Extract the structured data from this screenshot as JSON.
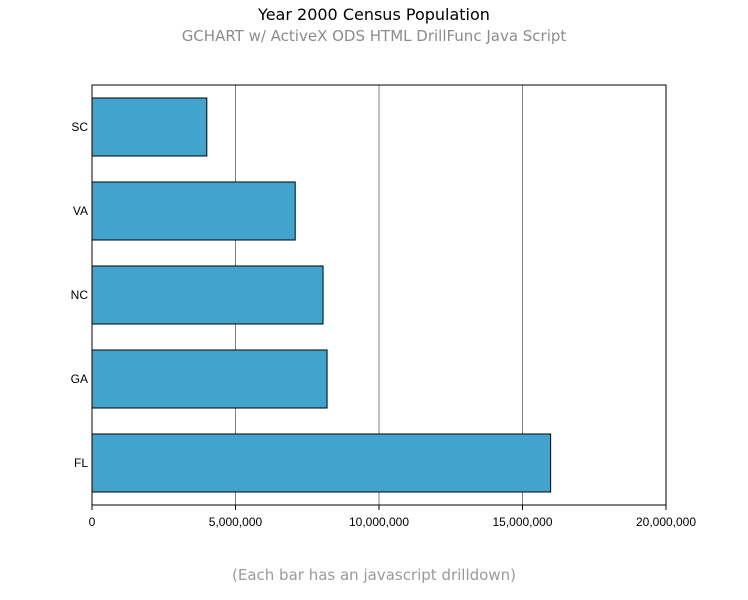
{
  "title": "Year 2000 Census Population",
  "subtitle": "GCHART w/ ActiveX ODS HTML DrillFunc Java Script",
  "footnote": "(Each bar has an javascript drilldown)",
  "colors": {
    "bar": "#42a4cd",
    "bar_outline": "#000000",
    "grid": "#808080",
    "axis": "#000000"
  },
  "chart_data": {
    "type": "bar",
    "orientation": "horizontal",
    "categories": [
      "SC",
      "VA",
      "NC",
      "GA",
      "FL"
    ],
    "values": [
      4000000,
      7080000,
      8050000,
      8190000,
      15980000
    ],
    "xlim": [
      0,
      20000000
    ],
    "xticks": [
      0,
      5000000,
      10000000,
      15000000,
      20000000
    ],
    "xtick_labels": [
      "0",
      "5,000,000",
      "10,000,000",
      "15,000,000",
      "20,000,000"
    ],
    "grid": true
  }
}
